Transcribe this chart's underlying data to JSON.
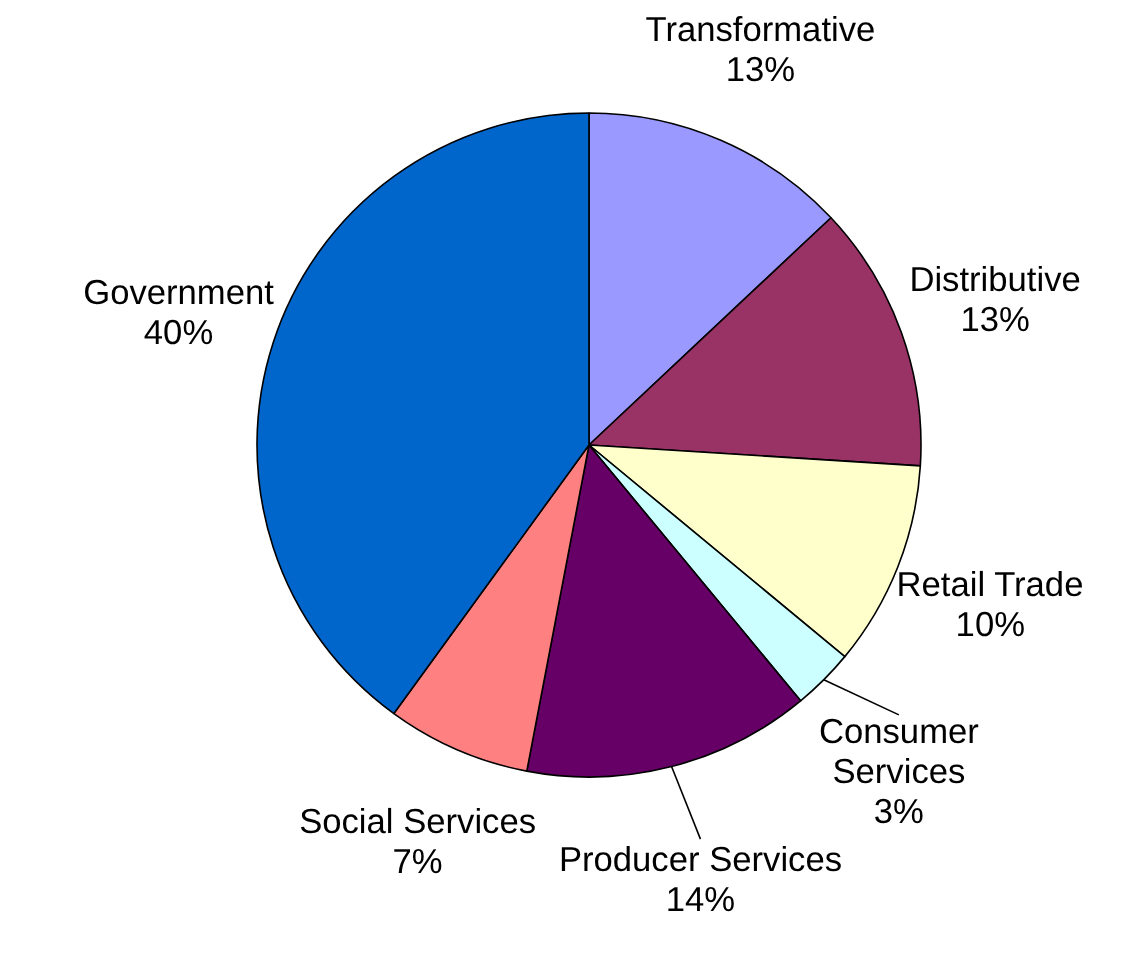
{
  "chart_data": {
    "type": "pie",
    "categories": [
      "Transformative",
      "Distributive",
      "Retail Trade",
      "Consumer Services",
      "Producer Services",
      "Social Services",
      "Government"
    ],
    "values": [
      13,
      13,
      10,
      3,
      14,
      7,
      40
    ],
    "value_labels": [
      "13%",
      "13%",
      "10%",
      "3%",
      "14%",
      "7%",
      "40%"
    ],
    "colors": [
      "#9999ff",
      "#993366",
      "#ffffcc",
      "#ccffff",
      "#660066",
      "#ff8080",
      "#0066cc"
    ]
  }
}
